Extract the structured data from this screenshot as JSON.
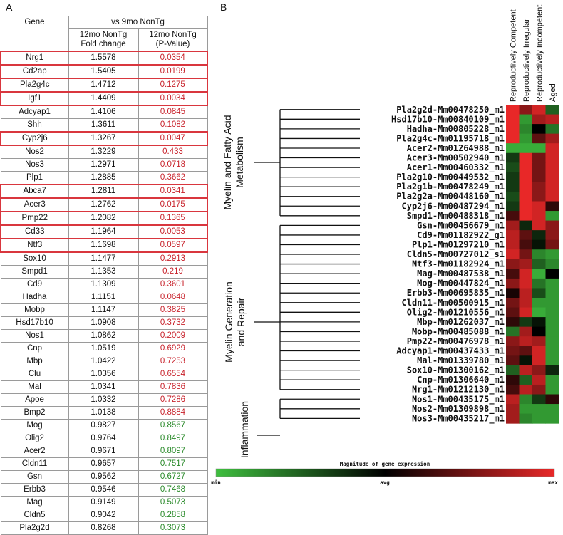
{
  "panel_a": {
    "label": "A",
    "header": {
      "gene": "Gene",
      "comparison": "vs 9mo NonTg",
      "fold": "12mo NonTg\nFold change",
      "pval": "12mo NonTg\n(P-Value)"
    },
    "rows": [
      {
        "gene": "Nrg1",
        "fold": "1.5578",
        "p": "0.0354",
        "hl": true,
        "sig": "red"
      },
      {
        "gene": "Cd2ap",
        "fold": "1.5405",
        "p": "0.0199",
        "hl": true,
        "sig": "red"
      },
      {
        "gene": "Pla2g4c",
        "fold": "1.4712",
        "p": "0.1275",
        "hl": true,
        "sig": "red"
      },
      {
        "gene": "Igf1",
        "fold": "1.4409",
        "p": "0.0034",
        "hl": true,
        "sig": "red"
      },
      {
        "gene": "Adcyap1",
        "fold": "1.4106",
        "p": "0.0845",
        "hl": false,
        "sig": "red"
      },
      {
        "gene": "Shh",
        "fold": "1.3611",
        "p": "0.1082",
        "hl": false,
        "sig": "red"
      },
      {
        "gene": "Cyp2j6",
        "fold": "1.3267",
        "p": "0.0047",
        "hl": true,
        "sig": "red"
      },
      {
        "gene": "Nos2",
        "fold": "1.3229",
        "p": "0.433",
        "hl": false,
        "sig": "red"
      },
      {
        "gene": "Nos3",
        "fold": "1.2971",
        "p": "0.0718",
        "hl": false,
        "sig": "red"
      },
      {
        "gene": "Plp1",
        "fold": "1.2885",
        "p": "0.3662",
        "hl": false,
        "sig": "red"
      },
      {
        "gene": "Abca7",
        "fold": "1.2811",
        "p": "0.0341",
        "hl": true,
        "sig": "red"
      },
      {
        "gene": "Acer3",
        "fold": "1.2762",
        "p": "0.0175",
        "hl": true,
        "sig": "red"
      },
      {
        "gene": "Pmp22",
        "fold": "1.2082",
        "p": "0.1365",
        "hl": true,
        "sig": "red"
      },
      {
        "gene": "Cd33",
        "fold": "1.1964",
        "p": "0.0053",
        "hl": true,
        "sig": "red"
      },
      {
        "gene": "Ntf3",
        "fold": "1.1698",
        "p": "0.0597",
        "hl": true,
        "sig": "red"
      },
      {
        "gene": "Sox10",
        "fold": "1.1477",
        "p": "0.2913",
        "hl": false,
        "sig": "red"
      },
      {
        "gene": "Smpd1",
        "fold": "1.1353",
        "p": "0.219",
        "hl": false,
        "sig": "red"
      },
      {
        "gene": "Cd9",
        "fold": "1.1309",
        "p": "0.3601",
        "hl": false,
        "sig": "red"
      },
      {
        "gene": "Hadha",
        "fold": "1.1151",
        "p": "0.0648",
        "hl": false,
        "sig": "red"
      },
      {
        "gene": "Mobp",
        "fold": "1.1147",
        "p": "0.3825",
        "hl": false,
        "sig": "red"
      },
      {
        "gene": "Hsd17b10",
        "fold": "1.0908",
        "p": "0.3732",
        "hl": false,
        "sig": "red"
      },
      {
        "gene": "Nos1",
        "fold": "1.0862",
        "p": "0.2009",
        "hl": false,
        "sig": "red"
      },
      {
        "gene": "Cnp",
        "fold": "1.0519",
        "p": "0.6929",
        "hl": false,
        "sig": "red"
      },
      {
        "gene": "Mbp",
        "fold": "1.0422",
        "p": "0.7253",
        "hl": false,
        "sig": "red"
      },
      {
        "gene": "Clu",
        "fold": "1.0356",
        "p": "0.6554",
        "hl": false,
        "sig": "red"
      },
      {
        "gene": "Mal",
        "fold": "1.0341",
        "p": "0.7836",
        "hl": false,
        "sig": "red"
      },
      {
        "gene": "Apoe",
        "fold": "1.0332",
        "p": "0.7286",
        "hl": false,
        "sig": "red"
      },
      {
        "gene": "Bmp2",
        "fold": "1.0138",
        "p": "0.8884",
        "hl": false,
        "sig": "red"
      },
      {
        "gene": "Mog",
        "fold": "0.9827",
        "p": "0.8567",
        "hl": false,
        "sig": "green"
      },
      {
        "gene": "Olig2",
        "fold": "0.9764",
        "p": "0.8497",
        "hl": false,
        "sig": "green"
      },
      {
        "gene": "Acer2",
        "fold": "0.9671",
        "p": "0.8097",
        "hl": false,
        "sig": "green"
      },
      {
        "gene": "Cldn11",
        "fold": "0.9657",
        "p": "0.7517",
        "hl": false,
        "sig": "green"
      },
      {
        "gene": "Gsn",
        "fold": "0.9562",
        "p": "0.6727",
        "hl": false,
        "sig": "green"
      },
      {
        "gene": "Erbb3",
        "fold": "0.9546",
        "p": "0.7468",
        "hl": false,
        "sig": "green"
      },
      {
        "gene": "Mag",
        "fold": "0.9149",
        "p": "0.5073",
        "hl": false,
        "sig": "green"
      },
      {
        "gene": "Cldn5",
        "fold": "0.9042",
        "p": "0.2858",
        "hl": false,
        "sig": "green"
      },
      {
        "gene": "Pla2g2d",
        "fold": "0.8268",
        "p": "0.3073",
        "hl": false,
        "sig": "green"
      }
    ]
  },
  "panel_b": {
    "label": "B",
    "columns": [
      "Reproductively Competent",
      "Reproductively Irregular",
      "Reproductively Incompetent",
      "Aged"
    ],
    "clusters": [
      {
        "label_lines": [
          "Myelin and Fatty Acid",
          "Metabolism"
        ]
      },
      {
        "label_lines": [
          "Myelin Generation",
          "and Repair"
        ]
      },
      {
        "label_lines": [
          "Inflammation"
        ]
      }
    ],
    "scale": {
      "title": "Magnitude of gene expression",
      "min": "min",
      "avg": "avg",
      "max": "max"
    }
  },
  "chart_data": {
    "type": "heatmap",
    "title": "Magnitude of gene expression",
    "columns": [
      "Reproductively Competent",
      "Reproductively Irregular",
      "Reproductively Incompetent",
      "Aged"
    ],
    "scale": {
      "min": -1,
      "avg": 0,
      "max": 1,
      "labels": [
        "min",
        "avg",
        "max"
      ],
      "colors": [
        "#3fbf3f",
        "#000000",
        "#e82828"
      ]
    },
    "rows": [
      {
        "probe": "Pla2g2d-Mm00478250_m1",
        "values": [
          1,
          0.6,
          0.9,
          -0.5
        ]
      },
      {
        "probe": "Hsd17b10-Mm00840109_m1",
        "values": [
          1,
          -0.8,
          0.7,
          0.8
        ]
      },
      {
        "probe": "Hadha-Mm00805228_m1",
        "values": [
          1,
          -0.7,
          0,
          -0.6
        ]
      },
      {
        "probe": "Pla2g4c-Mm01195718_m1",
        "values": [
          1,
          -0.8,
          0.4,
          0.7
        ]
      },
      {
        "probe": "Acer2-Mm01264988_m1",
        "values": [
          -0.9,
          -0.9,
          -0.9,
          0.9
        ]
      },
      {
        "probe": "Acer3-Mm00502940_m1",
        "values": [
          -0.3,
          1,
          0.5,
          0.9
        ]
      },
      {
        "probe": "Acer1-Mm00460332_m1",
        "values": [
          -0.4,
          1,
          0.5,
          0.9
        ]
      },
      {
        "probe": "Pla2g10-Mm00449532_m1",
        "values": [
          -0.3,
          1,
          0.5,
          0.9
        ]
      },
      {
        "probe": "Pla2g1b-Mm00478249_m1",
        "values": [
          -0.3,
          1,
          0.6,
          0.9
        ]
      },
      {
        "probe": "Pla2g2a-Mm00448160_m1",
        "values": [
          -0.4,
          1,
          0.6,
          0.9
        ]
      },
      {
        "probe": "Cyp2j6-Mm00487294_m1",
        "values": [
          -0.3,
          1,
          0.9,
          0.2
        ]
      },
      {
        "probe": "Smpd1-Mm00488318_m1",
        "values": [
          0.3,
          1,
          0.9,
          -0.8
        ]
      },
      {
        "probe": "Gsn-Mm00456679_m1",
        "values": [
          0.7,
          -0.2,
          0.9,
          0.6
        ]
      },
      {
        "probe": "Cd9-Mm01182922_g1",
        "values": [
          0.8,
          0.4,
          -0.2,
          0.6
        ]
      },
      {
        "probe": "Plp1-Mm01297210_m1",
        "values": [
          0.8,
          0.3,
          -0.1,
          0.5
        ]
      },
      {
        "probe": "Cldn5-Mm00727012_s1",
        "values": [
          0.9,
          0.5,
          -0.7,
          -0.8
        ]
      },
      {
        "probe": "Ntf3-Mm01182924_m1",
        "values": [
          0.6,
          0.7,
          -0.5,
          -0.7
        ]
      },
      {
        "probe": "Mag-Mm00487538_m1",
        "values": [
          0.3,
          0.9,
          -0.9,
          0
        ]
      },
      {
        "probe": "Mog-Mm00447824_m1",
        "values": [
          0.6,
          0.9,
          -0.6,
          -0.8
        ]
      },
      {
        "probe": "Erbb3-Mm00695835_m1",
        "values": [
          0.1,
          0.8,
          -0.4,
          -0.8
        ]
      },
      {
        "probe": "Cldn11-Mm00500915_m1",
        "values": [
          0.5,
          0.8,
          -0.8,
          -0.8
        ]
      },
      {
        "probe": "Olig2-Mm01210556_m1",
        "values": [
          0.4,
          0.9,
          -0.9,
          -0.8
        ]
      },
      {
        "probe": "Mbp-Mm01262037_m1",
        "values": [
          0.2,
          -0.3,
          -0.1,
          -0.8
        ]
      },
      {
        "probe": "Mobp-Mm00485088_m1",
        "values": [
          -0.6,
          0.7,
          0,
          -0.8
        ]
      },
      {
        "probe": "Pmp22-Mm00476978_m1",
        "values": [
          0.6,
          0.8,
          0.7,
          -0.8
        ]
      },
      {
        "probe": "Adcyap1-Mm00437433_m1",
        "values": [
          0.5,
          0.4,
          0.9,
          -0.8
        ]
      },
      {
        "probe": "Mal-Mm01339780_m1",
        "values": [
          0.4,
          -0.1,
          0.9,
          -0.8
        ]
      },
      {
        "probe": "Sox10-Mm01300162_m1",
        "values": [
          -0.5,
          0.8,
          0.6,
          -0.2
        ]
      },
      {
        "probe": "Cnp-Mm01306640_m1",
        "values": [
          0.2,
          -0.5,
          0.8,
          -0.8
        ]
      },
      {
        "probe": "Nrg1-Mm01212130_m1",
        "values": [
          0.3,
          0.8,
          0.6,
          -0.8
        ]
      },
      {
        "probe": "Nos1-Mm00435175_m1",
        "values": [
          0.8,
          -0.7,
          -0.3,
          0.2
        ]
      },
      {
        "probe": "Nos2-Mm01309898_m1",
        "values": [
          0.7,
          -0.8,
          -0.8,
          -0.8
        ]
      },
      {
        "probe": "Nos3-Mm00435217_m1",
        "values": [
          0.7,
          -0.7,
          -0.8,
          -0.8
        ]
      }
    ]
  }
}
